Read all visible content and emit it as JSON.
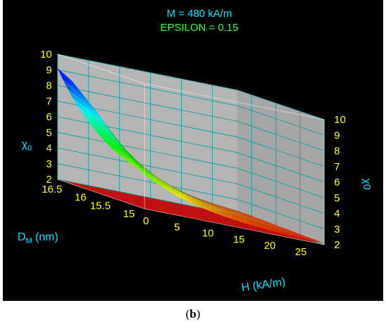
{
  "caption": {
    "open": "(",
    "letter": "b",
    "close": ")"
  },
  "chart_data": {
    "type": "surface3d",
    "title": "M = 480 kA/m",
    "subtitle": "EPSILON = 0.15",
    "xlabel": "H (kA/m)",
    "ylabel_main": "D",
    "ylabel_sub": "M",
    "ylabel_unit": " (nm)",
    "zlabel_main": "χ",
    "zlabel_sub": "0",
    "zlabel_right": "χ0",
    "xlim": [
      0,
      29
    ],
    "ylim": [
      15,
      16.8
    ],
    "zlim": [
      2,
      10
    ],
    "x_ticks": [
      "0",
      "5",
      "10",
      "15",
      "20",
      "25"
    ],
    "y_ticks": [
      "15",
      "15.5",
      "16",
      "16.5"
    ],
    "z_ticks": [
      "2",
      "3",
      "4",
      "5",
      "6",
      "7",
      "8",
      "9",
      "10"
    ],
    "surface_model": {
      "chi_at_H0_by_D": [
        [
          15,
          4.2
        ],
        [
          15.5,
          5.6
        ],
        [
          16,
          7.2
        ],
        [
          16.5,
          8.6
        ],
        [
          16.8,
          9.1
        ]
      ],
      "decay_H_scale_kA_per_m": 9,
      "floor": 2
    },
    "colors": {
      "title": "#00e5ff",
      "subtitle": "#33ff33",
      "tick_text": "#ffff00",
      "axis_label": "#00e5ff",
      "wall": "#b4b4b4",
      "grid": "#00a0a0",
      "floor": "#c01010",
      "background": "#000000"
    }
  }
}
